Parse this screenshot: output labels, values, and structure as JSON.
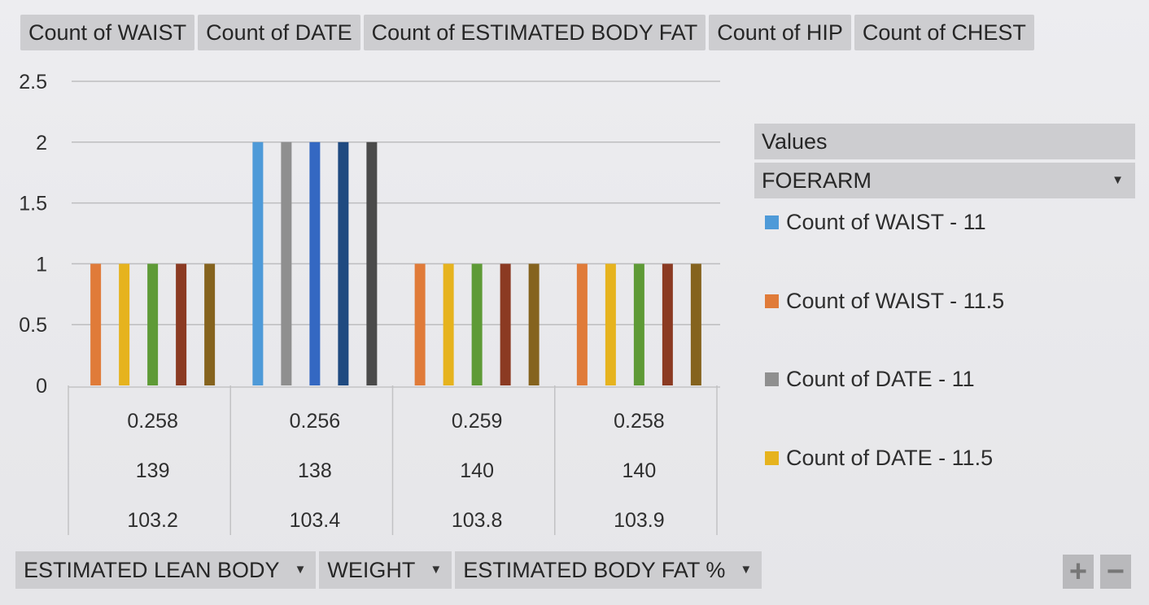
{
  "field_buttons": [
    {
      "label": "Count of WAIST"
    },
    {
      "label": "Count of DATE"
    },
    {
      "label": "Count of ESTIMATED BODY FAT"
    },
    {
      "label": "Count of HIP"
    },
    {
      "label": "Count of CHEST"
    }
  ],
  "axis_buttons": [
    {
      "label": "ESTIMATED LEAN BODY",
      "icon": "caret-down-icon"
    },
    {
      "label": "WEIGHT",
      "icon": "caret-down-icon"
    },
    {
      "label": "ESTIMATED BODY FAT %",
      "icon": "caret-down-icon"
    }
  ],
  "legend": {
    "values_label": "Values",
    "field_label": "FOERARM",
    "items": [
      {
        "label": "Count of WAIST - 11",
        "color": "#4e9ad8"
      },
      {
        "label": "Count of WAIST - 11.5",
        "color": "#e07b39"
      },
      {
        "label": "Count of DATE - 11",
        "color": "#8f8f8f"
      },
      {
        "label": "Count of DATE - 11.5",
        "color": "#e6b31e"
      }
    ]
  },
  "zoom": {
    "plus": "+",
    "minus": "−"
  },
  "chart_data": {
    "type": "bar",
    "ylim": [
      0,
      2.5
    ],
    "yticks": [
      "0",
      "0.5",
      "1",
      "1.5",
      "2",
      "2.5"
    ],
    "grid": true,
    "legend_placement": "right",
    "categories": [
      {
        "levels": [
          "0.258",
          "139",
          "103.2"
        ]
      },
      {
        "levels": [
          "0.256",
          "138",
          "103.4"
        ]
      },
      {
        "levels": [
          "0.259",
          "140",
          "103.8"
        ]
      },
      {
        "levels": [
          "0.258",
          "140",
          "103.9"
        ]
      }
    ],
    "groups": [
      {
        "bars": [
          {
            "value": 1,
            "color": "#e07b39"
          },
          {
            "value": 1,
            "color": "#e6b31e"
          },
          {
            "value": 1,
            "color": "#5e9a36"
          },
          {
            "value": 1,
            "color": "#8b3a22"
          },
          {
            "value": 1,
            "color": "#85631e"
          }
        ]
      },
      {
        "bars": [
          {
            "value": 2,
            "color": "#4e9ad8"
          },
          {
            "value": 2,
            "color": "#8f8f8f"
          },
          {
            "value": 2,
            "color": "#3468c2"
          },
          {
            "value": 2,
            "color": "#1f4a80"
          },
          {
            "value": 2,
            "color": "#4a4a4a"
          }
        ]
      },
      {
        "bars": [
          {
            "value": 1,
            "color": "#e07b39"
          },
          {
            "value": 1,
            "color": "#e6b31e"
          },
          {
            "value": 1,
            "color": "#5e9a36"
          },
          {
            "value": 1,
            "color": "#8b3a22"
          },
          {
            "value": 1,
            "color": "#85631e"
          }
        ]
      },
      {
        "bars": [
          {
            "value": 1,
            "color": "#e07b39"
          },
          {
            "value": 1,
            "color": "#e6b31e"
          },
          {
            "value": 1,
            "color": "#5e9a36"
          },
          {
            "value": 1,
            "color": "#8b3a22"
          },
          {
            "value": 1,
            "color": "#85631e"
          }
        ]
      }
    ]
  }
}
